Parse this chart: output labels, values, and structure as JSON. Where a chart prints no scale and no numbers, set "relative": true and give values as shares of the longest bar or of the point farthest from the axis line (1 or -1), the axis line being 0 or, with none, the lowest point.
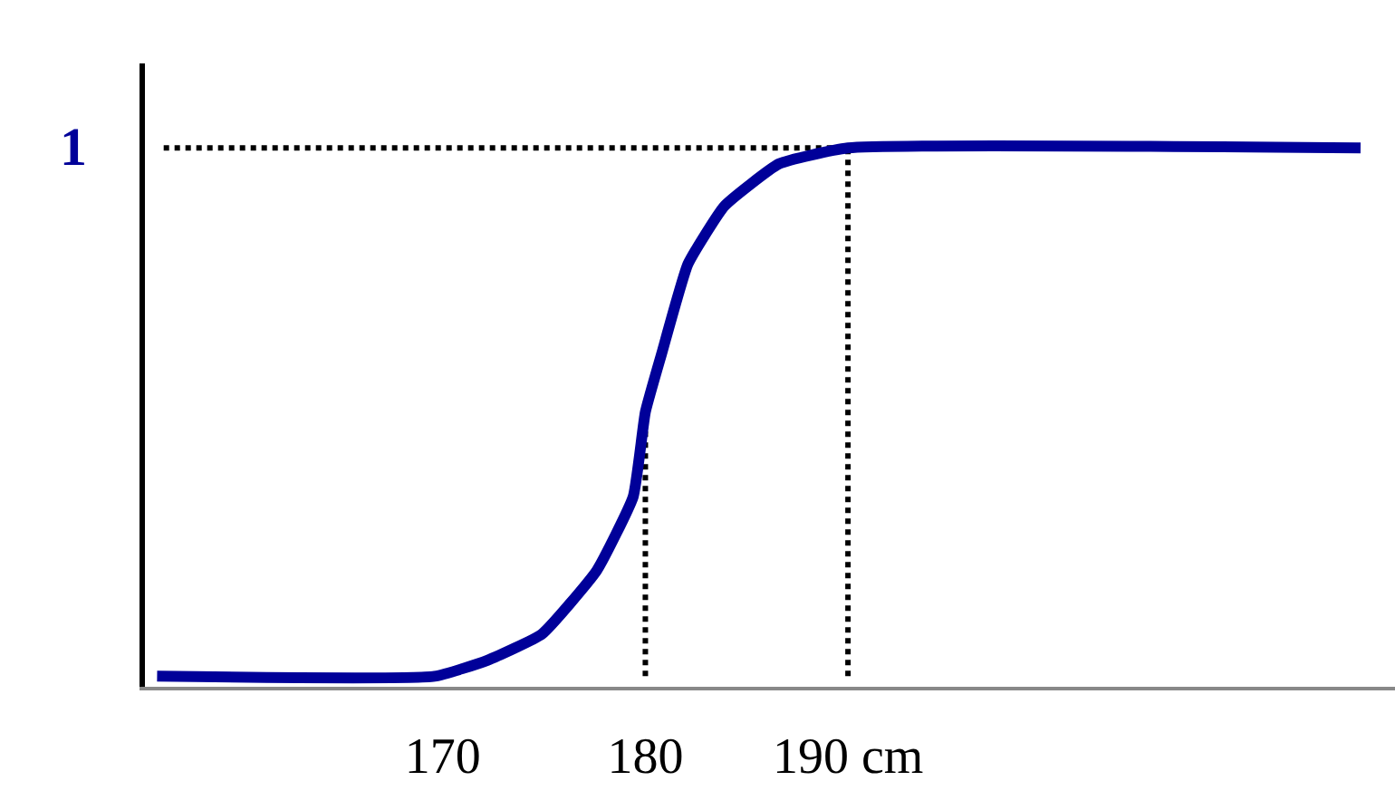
{
  "chart_data": {
    "type": "line",
    "relative": true,
    "x": [
      155.9,
      169.6,
      172.2,
      174.9,
      177.6,
      179.4,
      180,
      180.8,
      182.1,
      183.9,
      186.6,
      190,
      215.3
    ],
    "series": [
      {
        "color": "#000099",
        "values": [
          0,
          0,
          0.03,
          0.08,
          0.2,
          0.34,
          0.5,
          0.61,
          0.78,
          0.89,
          0.97,
          1,
          1
        ]
      }
    ],
    "xlim": [
      155.3,
      217
    ],
    "xticks": [
      170,
      180,
      {
        "value": 190,
        "label": "190 cm"
      }
    ],
    "ref_lines": [
      {
        "axis": "y",
        "value": 1,
        "label": "1",
        "line_style": "dotted",
        "color": "#000000"
      },
      {
        "axis": "x",
        "value": 180,
        "line_style": "dotted",
        "color": "#000000"
      },
      {
        "axis": "x",
        "value": 190,
        "line_style": "dotted",
        "color": "#000000"
      }
    ],
    "grid": false
  }
}
